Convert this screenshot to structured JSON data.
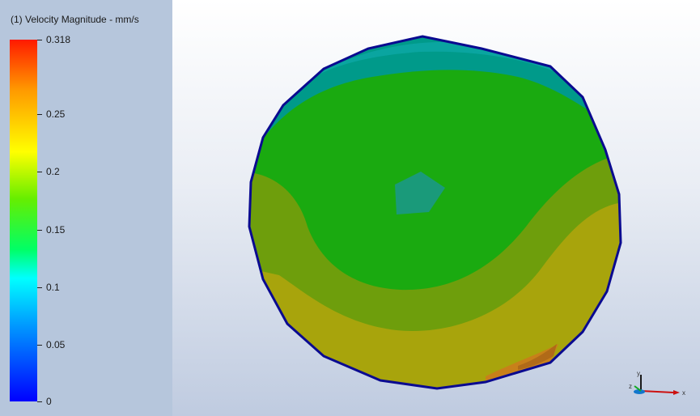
{
  "legend": {
    "title": "(1) Velocity Magnitude - mm/s",
    "ticks": [
      {
        "label": "0.318",
        "value": 0.318
      },
      {
        "label": "0.25",
        "value": 0.25
      },
      {
        "label": "0.2",
        "value": 0.2
      },
      {
        "label": "0.15",
        "value": 0.15
      },
      {
        "label": "0.1",
        "value": 0.1
      },
      {
        "label": "0.05",
        "value": 0.05
      },
      {
        "label": "0",
        "value": 0
      }
    ],
    "range": [
      0,
      0.318
    ]
  },
  "colors": {
    "max": "#ff1a00",
    "high": "#ffff00",
    "mid": "#22aa00",
    "low": "#00ffff",
    "min": "#0000ff",
    "contour_teal": "#009a8a",
    "contour_green": "#1aaa10",
    "contour_olive": "#6e9e0c",
    "contour_yellow_olive": "#a8a40c"
  },
  "triad": {
    "y_label": "y",
    "x_label": "x",
    "z_label": "z",
    "icon": "coordinate-triad-icon"
  }
}
